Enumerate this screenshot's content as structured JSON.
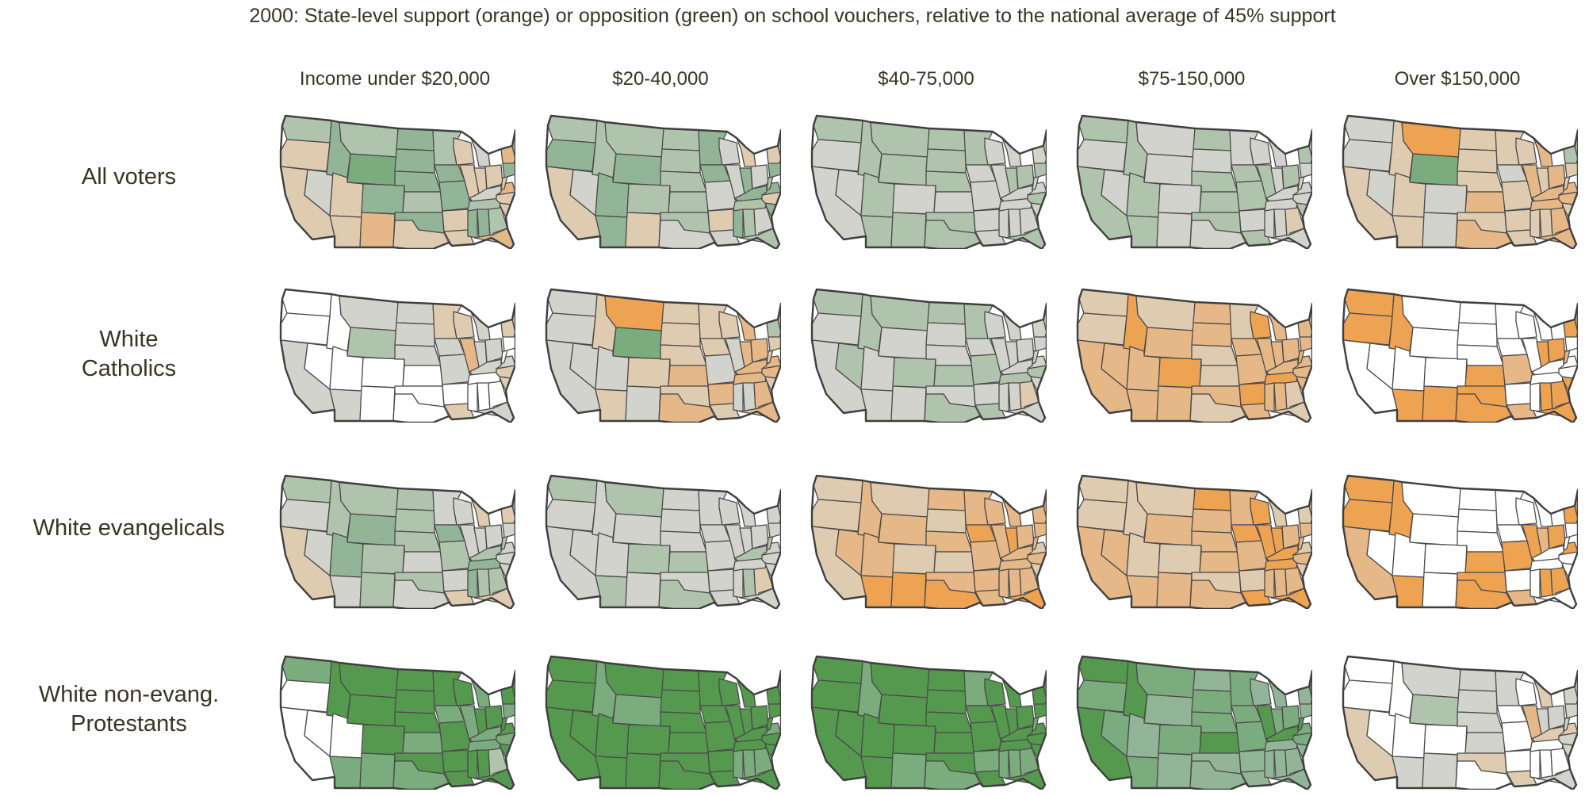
{
  "title": "2000:  State-level support (orange) or opposition (green) on school vouchers, relative to the national average of 45% support",
  "colors": {
    "strong_orange": "#eda352",
    "orange": "#e6b887",
    "light_orange": "#dfcbb0",
    "neutral": "#d2d3cc",
    "light_green": "#b0c4ad",
    "green": "#92b597",
    "mid_green": "#7bac7d",
    "strong_green": "#55994e",
    "no_data": "#ffffff",
    "border": "#4b4b4b",
    "text": "#3b3326"
  },
  "income_groups": [
    "Income under $20,000",
    "$20-40,000",
    "$40-75,000",
    "$75-150,000",
    "Over $150,000"
  ],
  "voter_groups": [
    {
      "lines": [
        "All voters"
      ]
    },
    {
      "lines": [
        "White",
        "Catholics"
      ]
    },
    {
      "lines": [
        "White evangelicals"
      ]
    },
    {
      "lines": [
        "White non-evang.",
        "Protestants"
      ]
    }
  ],
  "map_grid": [
    [
      "mixed_green_orange",
      "light_green",
      "light_green_neutral",
      "neutral",
      "light_orange"
    ],
    [
      "neutral_white",
      "light_orange",
      "neutral",
      "orange",
      "strong_orange_white"
    ],
    [
      "light_green",
      "neutral",
      "orange",
      "orange",
      "strong_orange_white"
    ],
    [
      "strong_green_white",
      "strong_green",
      "strong_green",
      "green",
      "neutral_white"
    ]
  ]
}
